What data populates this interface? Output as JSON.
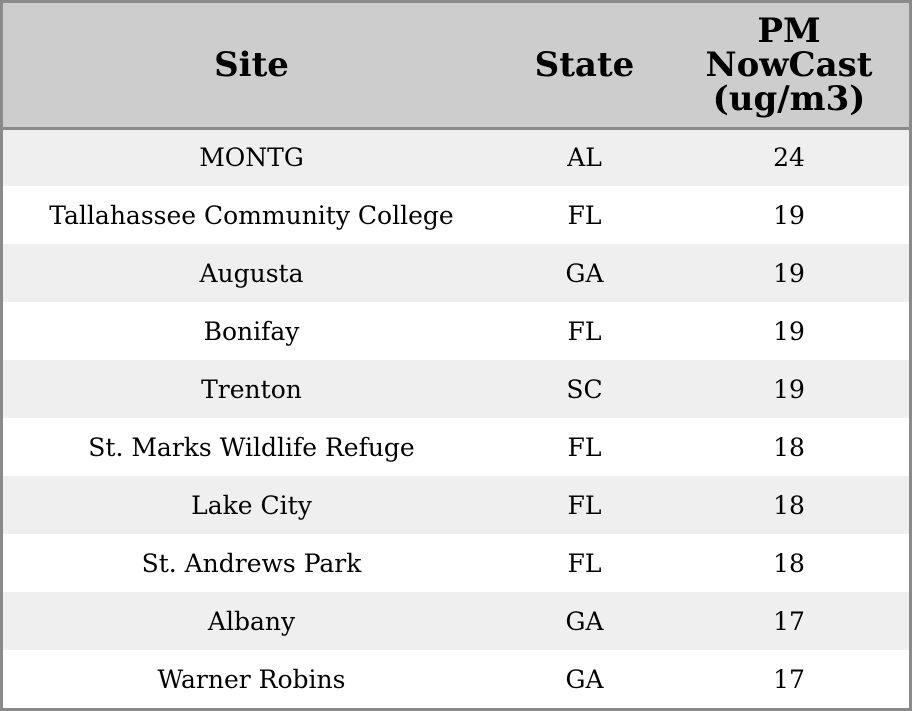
{
  "chart_data": {
    "type": "table",
    "columns": [
      "Site",
      "State",
      "PM\nNowCast\n(ug/m3)"
    ],
    "rows": [
      [
        "MONTG",
        "AL",
        24
      ],
      [
        "Tallahassee Community College",
        "FL",
        19
      ],
      [
        "Augusta",
        "GA",
        19
      ],
      [
        "Bonifay",
        "FL",
        19
      ],
      [
        "Trenton",
        "SC",
        19
      ],
      [
        "St. Marks Wildlife Refuge",
        "FL",
        18
      ],
      [
        "Lake City",
        "FL",
        18
      ],
      [
        "St. Andrews Park",
        "FL",
        18
      ],
      [
        "Albany",
        "GA",
        17
      ],
      [
        "Warner Robins",
        "GA",
        17
      ]
    ]
  },
  "colors": {
    "header_bg": "#cdcdcd",
    "row_odd_bg": "#efefef",
    "row_even_bg": "#ffffff",
    "border": "#8a8a8a"
  }
}
